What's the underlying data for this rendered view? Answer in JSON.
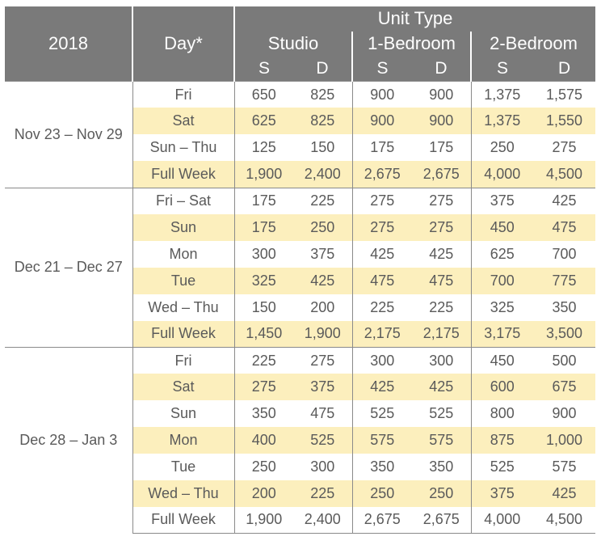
{
  "header": {
    "year": "2018",
    "day": "Day*",
    "unit_type": "Unit Type",
    "units": [
      "Studio",
      "1-Bedroom",
      "2-Bedroom"
    ],
    "sub": [
      "S",
      "D",
      "S",
      "D",
      "S",
      "D"
    ]
  },
  "colors": {
    "header_bg": "#7a7a7a",
    "alt_row_bg": "#fcefbd",
    "text": "#5a5a5a"
  },
  "groups": [
    {
      "period": "Nov 23 – Nov 29",
      "rows": [
        {
          "day": "Fri",
          "values": [
            "650",
            "825",
            "900",
            "900",
            "1,375",
            "1,575"
          ]
        },
        {
          "day": "Sat",
          "values": [
            "625",
            "825",
            "900",
            "900",
            "1,375",
            "1,550"
          ]
        },
        {
          "day": "Sun – Thu",
          "values": [
            "125",
            "150",
            "175",
            "175",
            "250",
            "275"
          ]
        },
        {
          "day": "Full Week",
          "values": [
            "1,900",
            "2,400",
            "2,675",
            "2,675",
            "4,000",
            "4,500"
          ]
        }
      ]
    },
    {
      "period": "Dec 21 – Dec 27",
      "rows": [
        {
          "day": "Fri – Sat",
          "values": [
            "175",
            "225",
            "275",
            "275",
            "375",
            "425"
          ]
        },
        {
          "day": "Sun",
          "values": [
            "175",
            "250",
            "275",
            "275",
            "450",
            "475"
          ]
        },
        {
          "day": "Mon",
          "values": [
            "300",
            "375",
            "425",
            "425",
            "625",
            "700"
          ]
        },
        {
          "day": "Tue",
          "values": [
            "325",
            "425",
            "475",
            "475",
            "700",
            "775"
          ]
        },
        {
          "day": "Wed – Thu",
          "values": [
            "150",
            "200",
            "225",
            "225",
            "325",
            "350"
          ]
        },
        {
          "day": "Full Week",
          "values": [
            "1,450",
            "1,900",
            "2,175",
            "2,175",
            "3,175",
            "3,500"
          ]
        }
      ]
    },
    {
      "period": "Dec 28 – Jan 3",
      "rows": [
        {
          "day": "Fri",
          "values": [
            "225",
            "275",
            "300",
            "300",
            "450",
            "500"
          ]
        },
        {
          "day": "Sat",
          "values": [
            "275",
            "375",
            "425",
            "425",
            "600",
            "675"
          ]
        },
        {
          "day": "Sun",
          "values": [
            "350",
            "475",
            "525",
            "525",
            "800",
            "900"
          ]
        },
        {
          "day": "Mon",
          "values": [
            "400",
            "525",
            "575",
            "575",
            "875",
            "1,000"
          ]
        },
        {
          "day": "Tue",
          "values": [
            "250",
            "300",
            "350",
            "350",
            "525",
            "575"
          ]
        },
        {
          "day": "Wed – Thu",
          "values": [
            "200",
            "225",
            "250",
            "250",
            "375",
            "425"
          ]
        },
        {
          "day": "Full Week",
          "values": [
            "1,900",
            "2,400",
            "2,675",
            "2,675",
            "4,000",
            "4,500"
          ]
        }
      ]
    }
  ]
}
